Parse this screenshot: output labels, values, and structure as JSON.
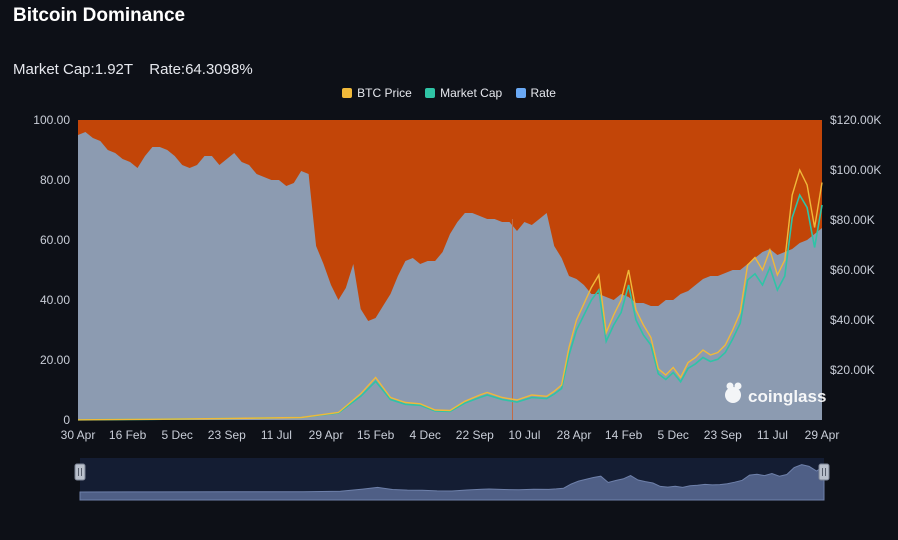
{
  "page": {
    "title": "Bitcoin Dominance",
    "market_cap_label": "Market Cap:",
    "market_cap_value": "1.92T",
    "rate_label": "Rate:",
    "rate_value": "64.3098%",
    "watermark": "coinglass"
  },
  "colors": {
    "background": "#0d1017",
    "btc_price": "#f0b93a",
    "market_cap": "#2fc4a6",
    "rate": "#6aa9f5",
    "dominance_area": "#8c9bb1",
    "remainder_area": "#c24508",
    "navigator": "#4f5f86"
  },
  "chart_data": {
    "type": "area",
    "legend": [
      "BTC Price",
      "Market Cap",
      "Rate"
    ],
    "legend_placement": "top-center",
    "grid": false,
    "x_tick_labels": [
      "30 Apr",
      "16 Feb",
      "5 Dec",
      "23 Sep",
      "11 Jul",
      "29 Apr",
      "15 Feb",
      "4 Dec",
      "22 Sep",
      "10 Jul",
      "28 Apr",
      "14 Feb",
      "5 Dec",
      "23 Sep",
      "11 Jul",
      "29 Apr"
    ],
    "y_left": {
      "ticks": [
        "0",
        "20.00",
        "40.00",
        "60.00",
        "80.00",
        "100.00"
      ],
      "range": [
        0,
        100
      ]
    },
    "y_right": {
      "ticks": [
        "$20.00K",
        "$40.00K",
        "$60.00K",
        "$80.00K",
        "$100.00K",
        "$120.00K"
      ],
      "range": [
        0,
        120000
      ]
    },
    "rate_series": {
      "name": "Rate",
      "t": [
        0,
        1,
        2,
        3,
        4,
        5,
        6,
        7,
        8,
        9,
        10,
        11,
        12,
        13,
        14,
        15,
        16,
        17,
        18,
        19,
        20,
        21,
        22,
        23,
        24,
        25,
        26,
        27,
        28,
        29,
        30,
        31,
        32,
        33,
        34,
        35,
        36,
        37,
        38,
        39,
        40,
        41,
        42,
        43,
        44,
        45,
        46,
        47,
        48,
        49,
        50,
        51,
        52,
        53,
        54,
        55,
        56,
        57,
        58,
        59,
        60,
        61,
        62,
        63,
        64,
        65,
        66,
        67,
        68,
        69,
        70,
        71,
        72,
        73,
        74,
        75,
        76,
        77,
        78,
        79,
        80,
        81,
        82,
        83,
        84,
        85,
        86,
        87,
        88,
        89,
        90,
        91,
        92,
        93,
        94,
        95,
        96,
        97,
        98,
        99,
        100
      ],
      "values": [
        95,
        96,
        94,
        93,
        90,
        89,
        87,
        86,
        84,
        88,
        91,
        91,
        90,
        88,
        85,
        84,
        85,
        88,
        88,
        85,
        87,
        89,
        86,
        85,
        82,
        81,
        80,
        80,
        78,
        79,
        83,
        82,
        58,
        52,
        45,
        40,
        44,
        52,
        37,
        33,
        34,
        38,
        42,
        48,
        53,
        54,
        52,
        53,
        53,
        56,
        62,
        66,
        69,
        69,
        68,
        67,
        67,
        66,
        66,
        63,
        66,
        65,
        67,
        69,
        58,
        54,
        48,
        47,
        45,
        42,
        42,
        41,
        40,
        42,
        41,
        39,
        39,
        38,
        38,
        40,
        40,
        42,
        43,
        45,
        47,
        48,
        48,
        49,
        50,
        50,
        52,
        54,
        56,
        57,
        55,
        56,
        57,
        59,
        60,
        62,
        64
      ]
    },
    "btc_price_series": {
      "name": "BTC Price",
      "t": [
        0,
        10,
        20,
        30,
        35,
        38,
        40,
        42,
        44,
        46,
        48,
        50,
        52,
        54,
        55,
        57,
        59,
        61,
        63,
        64,
        65,
        66,
        67,
        69,
        70,
        71,
        72,
        73,
        74,
        75,
        76,
        77,
        78,
        79,
        80,
        81,
        82,
        83,
        84,
        85,
        86,
        87,
        88,
        89,
        90,
        91,
        92,
        93,
        94,
        95,
        96,
        97,
        98,
        99,
        100
      ],
      "values": [
        100,
        300,
        600,
        1000,
        3000,
        10500,
        17000,
        9000,
        7000,
        6500,
        4000,
        3800,
        7500,
        10000,
        11000,
        9000,
        8000,
        10000,
        9500,
        11500,
        14000,
        29000,
        40000,
        53000,
        58000,
        35000,
        42000,
        48000,
        60000,
        44000,
        38000,
        33000,
        20500,
        18000,
        21000,
        17000,
        23000,
        25000,
        28000,
        26000,
        27000,
        30000,
        36000,
        43000,
        62000,
        65000,
        60000,
        68000,
        58000,
        64000,
        90000,
        100000,
        94000,
        77000,
        95000
      ]
    },
    "market_cap_series": {
      "name": "Market Cap",
      "t": [
        0,
        10,
        20,
        30,
        35,
        38,
        40,
        42,
        44,
        46,
        48,
        50,
        52,
        54,
        55,
        57,
        59,
        61,
        63,
        64,
        65,
        66,
        67,
        69,
        70,
        71,
        72,
        73,
        74,
        75,
        76,
        77,
        78,
        79,
        80,
        81,
        82,
        83,
        84,
        85,
        86,
        87,
        88,
        89,
        90,
        91,
        92,
        93,
        94,
        95,
        96,
        97,
        98,
        99,
        100
      ],
      "values": [
        100,
        300,
        600,
        1000,
        2800,
        9500,
        15500,
        8200,
        6300,
        5900,
        3600,
        3400,
        6800,
        9000,
        10000,
        8200,
        7200,
        9000,
        8600,
        10400,
        12600,
        26000,
        36000,
        48000,
        52000,
        31500,
        38000,
        43000,
        54000,
        40000,
        34000,
        30000,
        18500,
        16200,
        19000,
        15300,
        20700,
        22500,
        25000,
        23400,
        24300,
        27000,
        32400,
        38700,
        56000,
        58500,
        54000,
        61000,
        52000,
        57600,
        81000,
        90000,
        85000,
        69000,
        86000
      ]
    }
  }
}
